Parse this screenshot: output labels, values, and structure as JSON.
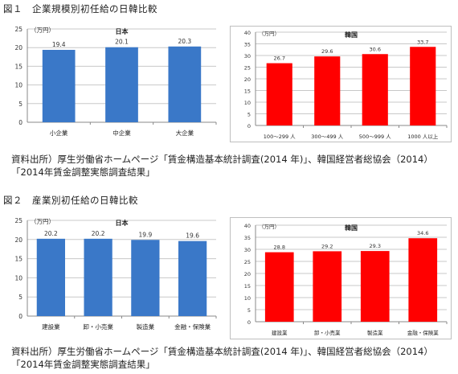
{
  "figure1": {
    "title": "図１　企業規模別初任給の日韓比較",
    "source": "資料出所）厚生労働省ホームページ「賃金構造基本統計調査(2014 年)」、韓国経営者総協会（2014）「2014年賃金調整実態調査結果」"
  },
  "figure2": {
    "title": "図２　産業別初任給の日韓比較",
    "source": "資料出所）厚生労働省ホームページ「賃金構造基本統計調査(2014 年)」、韓国経営者総協会（2014）「2014年賃金調整実態調査結果」"
  },
  "colors": {
    "japan": "#3a78c8",
    "korea": "#ff0000",
    "grid": "#c8c8c8",
    "axis": "#888888"
  },
  "chart_data": [
    {
      "type": "bar",
      "title": "日本",
      "unit_label": "（万円）",
      "categories": [
        "小企業",
        "中企業",
        "大企業"
      ],
      "values": [
        19.4,
        20.1,
        20.3
      ],
      "ylim": [
        0,
        25
      ],
      "yticks": [
        0,
        5,
        10,
        15,
        20,
        25
      ],
      "grid": true
    },
    {
      "type": "bar",
      "title": "韓国",
      "unit_label": "（万円）",
      "categories": [
        "100～299 人",
        "300～499 人",
        "500～999 人",
        "1000 人以上"
      ],
      "values": [
        26.7,
        29.6,
        30.6,
        33.7
      ],
      "ylim": [
        0,
        40
      ],
      "yticks": [
        0,
        5,
        10,
        15,
        20,
        25,
        30,
        35,
        40
      ],
      "grid": true
    },
    {
      "type": "bar",
      "title": "日本",
      "unit_label": "（万円）",
      "categories": [
        "建設業",
        "卸・小売業",
        "製造業",
        "金融・保険業"
      ],
      "values": [
        20.2,
        20.2,
        19.9,
        19.6
      ],
      "ylim": [
        0,
        25
      ],
      "yticks": [
        0,
        5,
        10,
        15,
        20,
        25
      ],
      "grid": true
    },
    {
      "type": "bar",
      "title": "韓国",
      "unit_label": "（万円）",
      "categories": [
        "建設業",
        "卸・小売業",
        "製造業",
        "金融・保険業"
      ],
      "values": [
        28.8,
        29.2,
        29.3,
        34.6
      ],
      "ylim": [
        0,
        40
      ],
      "yticks": [
        0,
        5,
        10,
        15,
        20,
        25,
        30,
        35,
        40
      ],
      "grid": true
    }
  ]
}
